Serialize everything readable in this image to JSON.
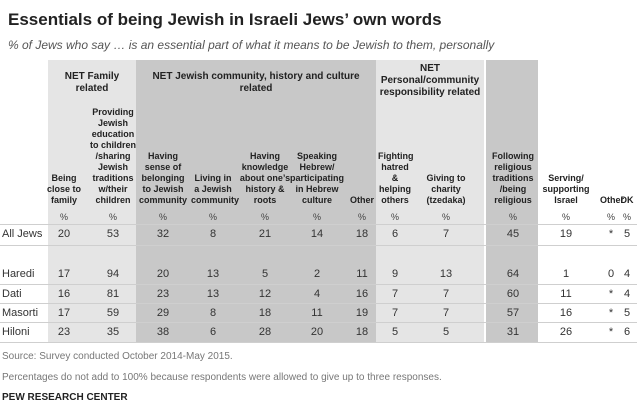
{
  "title": "Essentials of being Jewish in Israeli Jews’ own words",
  "subtitle": "% of Jews who say … is an essential part of what it means to be Jewish to them, personally",
  "chart_data": {
    "type": "table",
    "groups": [
      {
        "label": "NET Family related"
      },
      {
        "label": "NET Jewish community, history and culture related"
      },
      {
        "label": "NET Personal/community responsibility related"
      }
    ],
    "columns": [
      {
        "label": "Being close to family",
        "unit": "%"
      },
      {
        "label": "Providing Jewish education to children /sharing Jewish traditions w/their children",
        "unit": "%"
      },
      {
        "label": "Having sense of belonging to Jewish community",
        "unit": "%"
      },
      {
        "label": "Living in a Jewish community",
        "unit": "%"
      },
      {
        "label": "Having knowledge about one’s history & roots",
        "unit": "%"
      },
      {
        "label": "Speaking Hebrew/ participating in Hebrew culture",
        "unit": "%"
      },
      {
        "label": "Other",
        "unit": "%"
      },
      {
        "label": "Fighting hatred & helping others",
        "unit": "%"
      },
      {
        "label": "Giving to charity (tzedaka)",
        "unit": "%"
      },
      {
        "label": "Following religious traditions /being religious",
        "unit": "%"
      },
      {
        "label": "Serving/ supporting Israel",
        "unit": "%"
      },
      {
        "label": "Other",
        "unit": "%"
      },
      {
        "label": "DK",
        "unit": "%"
      }
    ],
    "rows": [
      {
        "label": "All Jews",
        "values": [
          "20",
          "53",
          "32",
          "8",
          "21",
          "14",
          "18",
          "6",
          "7",
          "45",
          "19",
          "*",
          "5"
        ]
      },
      {
        "label": "Haredi",
        "values": [
          "17",
          "94",
          "20",
          "13",
          "5",
          "2",
          "11",
          "9",
          "13",
          "64",
          "1",
          "0",
          "4"
        ]
      },
      {
        "label": "Dati",
        "values": [
          "16",
          "81",
          "23",
          "13",
          "12",
          "4",
          "16",
          "7",
          "7",
          "60",
          "11",
          "*",
          "4"
        ]
      },
      {
        "label": "Masorti",
        "values": [
          "17",
          "59",
          "29",
          "8",
          "18",
          "11",
          "19",
          "7",
          "7",
          "57",
          "16",
          "*",
          "5"
        ]
      },
      {
        "label": "Hiloni",
        "values": [
          "23",
          "35",
          "38",
          "6",
          "28",
          "20",
          "18",
          "5",
          "5",
          "31",
          "26",
          "*",
          "6"
        ]
      }
    ]
  },
  "notes": {
    "source": "Source: Survey conducted October 2014-May 2015.",
    "footnote": "Percentages do not add to 100% because respondents were allowed to give up to three responses."
  },
  "brand": "PEW RESEARCH CENTER",
  "colors": {
    "light_shade": "#e5e5e5",
    "dark_shade": "#c8c8c8"
  }
}
